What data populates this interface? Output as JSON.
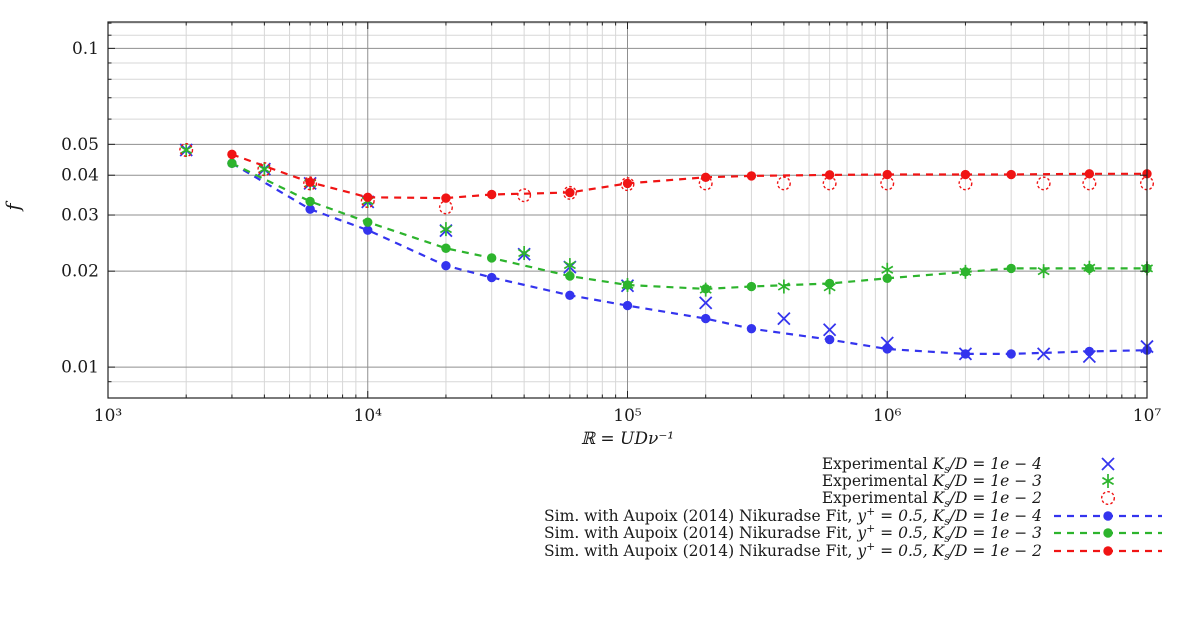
{
  "figure": {
    "background": "#ffffff"
  },
  "chart_data": {
    "type": "scatter",
    "title": "",
    "xlabel": "ℝ = UDν⁻¹",
    "ylabel": "f",
    "xscale": "log",
    "yscale": "log",
    "xlim": [
      1000,
      10000000
    ],
    "ylim": [
      0.008,
      0.121
    ],
    "grid": {
      "major_color": "#8f8f8f",
      "minor_color": "#d7d7d7",
      "minor_on": true
    },
    "frame_color": "#222222",
    "x_ticks": [
      {
        "v": 1000,
        "label": "10³"
      },
      {
        "v": 10000,
        "label": "10⁴"
      },
      {
        "v": 100000,
        "label": "10⁵"
      },
      {
        "v": 1000000,
        "label": "10⁶"
      },
      {
        "v": 10000000,
        "label": "10⁷"
      }
    ],
    "y_ticks": [
      {
        "v": 0.1,
        "label": "0.1"
      },
      {
        "v": 0.05,
        "label": "0.05"
      },
      {
        "v": 0.04,
        "label": "0.04"
      },
      {
        "v": 0.03,
        "label": "0.03"
      },
      {
        "v": 0.02,
        "label": "0.02"
      },
      {
        "v": 0.01,
        "label": "0.01"
      }
    ],
    "y_minor_gridlines": [
      0.009,
      0.06,
      0.07,
      0.08,
      0.09,
      0.11,
      0.12
    ],
    "series": [
      {
        "name": "exp-ks-1e-4",
        "color": "#3434ee",
        "marker": "cross",
        "line": "none",
        "x": [
          2000,
          4000,
          6000,
          10000,
          20000,
          40000,
          60000,
          100000,
          200000,
          400000,
          600000,
          1000000,
          2000000,
          4000000,
          6000000,
          10000000
        ],
        "y": [
          0.048,
          0.0418,
          0.0377,
          0.033,
          0.0268,
          0.0226,
          0.0206,
          0.018,
          0.0159,
          0.0142,
          0.0131,
          0.0119,
          0.011,
          0.011,
          0.0108,
          0.0116
        ]
      },
      {
        "name": "exp-ks-1e-3",
        "color": "#2db42d",
        "marker": "asterisk",
        "line": "none",
        "x": [
          2000,
          4000,
          6000,
          10000,
          20000,
          40000,
          60000,
          100000,
          200000,
          400000,
          600000,
          1000000,
          2000000,
          4000000,
          6000000,
          10000000
        ],
        "y": [
          0.048,
          0.0418,
          0.0377,
          0.0332,
          0.0271,
          0.0228,
          0.0209,
          0.0181,
          0.0175,
          0.0179,
          0.0178,
          0.0202,
          0.0199,
          0.02,
          0.0205,
          0.0204
        ]
      },
      {
        "name": "exp-ks-1e-2",
        "color": "#f01414",
        "marker": "circle-open",
        "line": "none",
        "x": [
          2000,
          4000,
          6000,
          10000,
          20000,
          40000,
          60000,
          100000,
          200000,
          400000,
          600000,
          1000000,
          2000000,
          4000000,
          6000000,
          10000000
        ],
        "y": [
          0.048,
          0.0418,
          0.0377,
          0.0332,
          0.0317,
          0.0346,
          0.0352,
          0.0375,
          0.0377,
          0.0377,
          0.0377,
          0.0377,
          0.0377,
          0.0377,
          0.0377,
          0.0377
        ]
      },
      {
        "name": "sim-ks-1e-4",
        "color": "#3434ee",
        "marker": "dot",
        "line": "dashed",
        "x": [
          3000,
          6000,
          10000,
          20000,
          30000,
          60000,
          100000,
          200000,
          300000,
          600000,
          1000000,
          2000000,
          3000000,
          6000000,
          10000000
        ],
        "y": [
          0.0436,
          0.0313,
          0.0269,
          0.0208,
          0.0191,
          0.0168,
          0.0156,
          0.0142,
          0.0132,
          0.0122,
          0.0114,
          0.011,
          0.011,
          0.0112,
          0.0113
        ]
      },
      {
        "name": "sim-ks-1e-3",
        "color": "#2db42d",
        "marker": "dot",
        "line": "dashed",
        "x": [
          3000,
          6000,
          10000,
          20000,
          30000,
          60000,
          100000,
          200000,
          300000,
          600000,
          1000000,
          2000000,
          3000000,
          6000000,
          10000000
        ],
        "y": [
          0.0436,
          0.0331,
          0.0285,
          0.0236,
          0.022,
          0.0193,
          0.0181,
          0.0176,
          0.0179,
          0.0183,
          0.019,
          0.0199,
          0.0204,
          0.0204,
          0.0204
        ]
      },
      {
        "name": "sim-ks-1e-2",
        "color": "#f01414",
        "marker": "dot",
        "line": "dashed",
        "x": [
          3000,
          6000,
          10000,
          20000,
          30000,
          60000,
          100000,
          200000,
          300000,
          600000,
          1000000,
          2000000,
          3000000,
          6000000,
          10000000
        ],
        "y": [
          0.0465,
          0.038,
          0.0341,
          0.0339,
          0.0348,
          0.0353,
          0.0377,
          0.0394,
          0.0398,
          0.0401,
          0.0402,
          0.0402,
          0.0402,
          0.0404,
          0.0404
        ]
      }
    ],
    "legend": {
      "position": "below-right",
      "entries": [
        {
          "text": "Experimental ",
          "math": "K_{s}/D = 1e − 4",
          "series_index": 0
        },
        {
          "text": "Experimental ",
          "math": "K_{s}/D = 1e − 3",
          "series_index": 1
        },
        {
          "text": "Experimental ",
          "math": "K_{s}/D = 1e − 2",
          "series_index": 2
        },
        {
          "text": "Sim. with Aupoix (2014) Nikuradse Fit, ",
          "math": "y^{+} = 0.5, K_{s}/D = 1e − 4",
          "series_index": 3
        },
        {
          "text": "Sim. with Aupoix (2014) Nikuradse Fit, ",
          "math": "y^{+} = 0.5, K_{s}/D = 1e − 3",
          "series_index": 4
        },
        {
          "text": "Sim. with Aupoix (2014) Nikuradse Fit, ",
          "math": "y^{+} = 0.5, K_{s}/D = 1e − 2",
          "series_index": 5
        }
      ]
    }
  }
}
